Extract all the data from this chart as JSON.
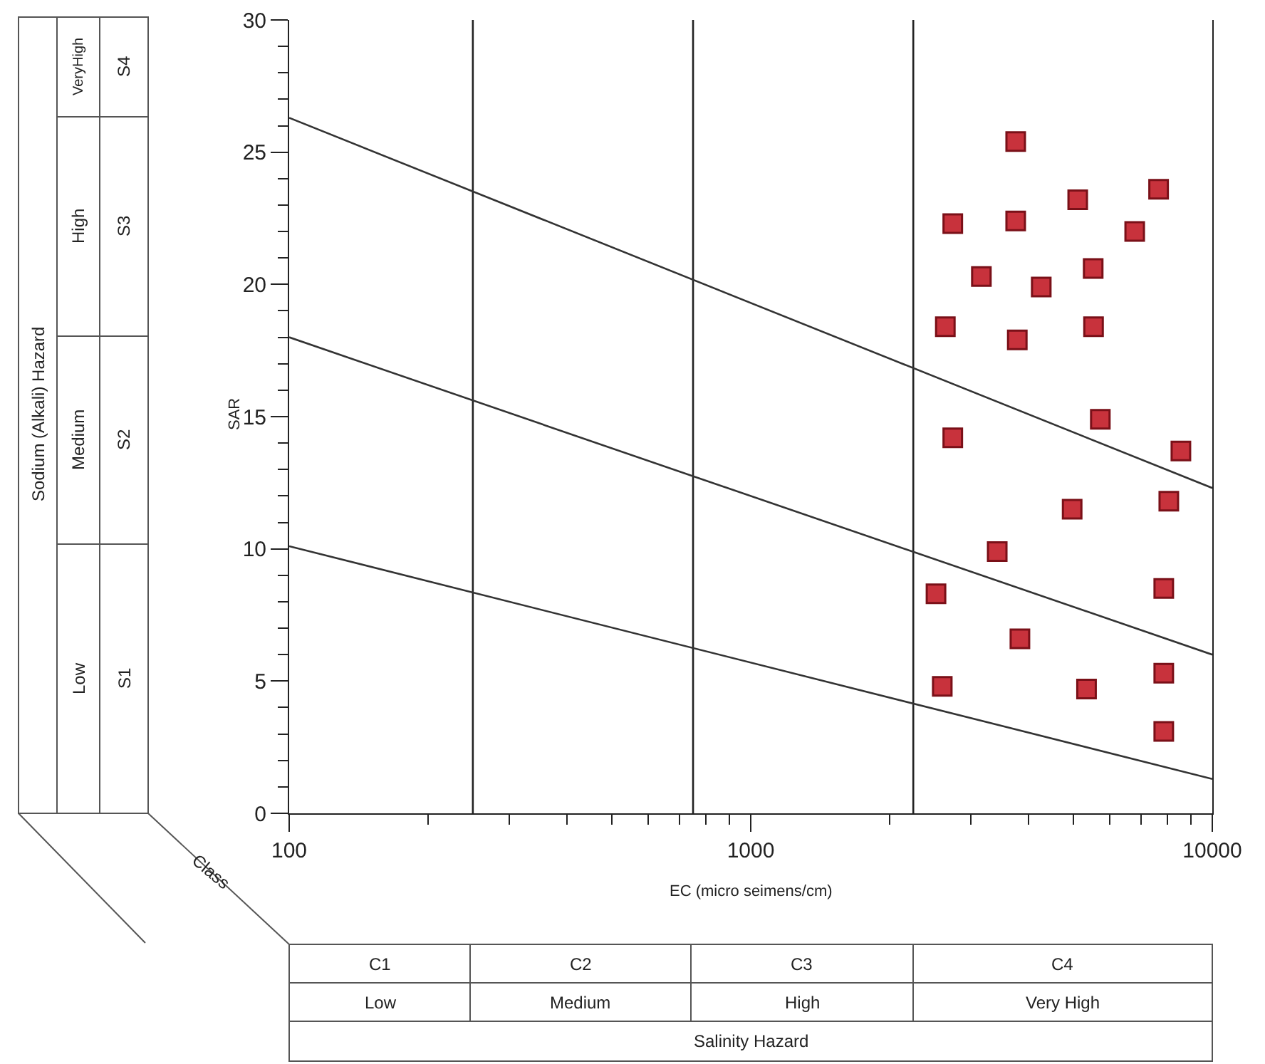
{
  "chart_data": {
    "type": "scatter",
    "xlabel": "EC (micro seimens/cm)",
    "ylabel": "SAR",
    "log": "x",
    "xlim": [
      100,
      10000
    ],
    "xticks": [
      100,
      {
        "value": 200,
        "label": null
      },
      {
        "value": 300,
        "label": null
      },
      {
        "value": 400,
        "label": null
      },
      {
        "value": 500,
        "label": null
      },
      {
        "value": 600,
        "label": null
      },
      {
        "value": 700,
        "label": null
      },
      {
        "value": 800,
        "label": null
      },
      {
        "value": 900,
        "label": null
      },
      1000,
      {
        "value": 2000,
        "label": null
      },
      {
        "value": 3000,
        "label": null
      },
      {
        "value": 4000,
        "label": null
      },
      {
        "value": 5000,
        "label": null
      },
      {
        "value": 6000,
        "label": null
      },
      {
        "value": 7000,
        "label": null
      },
      {
        "value": 8000,
        "label": null
      },
      {
        "value": 9000,
        "label": null
      },
      10000
    ],
    "ylim": [
      0,
      30
    ],
    "yticks": [
      0,
      {
        "value": 1,
        "label": null
      },
      {
        "value": 2,
        "label": null
      },
      {
        "value": 3,
        "label": null
      },
      {
        "value": 4,
        "label": null
      },
      5,
      {
        "value": 6,
        "label": null
      },
      {
        "value": 7,
        "label": null
      },
      {
        "value": 8,
        "label": null
      },
      {
        "value": 9,
        "label": null
      },
      10,
      {
        "value": 11,
        "label": null
      },
      {
        "value": 12,
        "label": null
      },
      {
        "value": 13,
        "label": null
      },
      {
        "value": 14,
        "label": null
      },
      15,
      {
        "value": 16,
        "label": null
      },
      {
        "value": 17,
        "label": null
      },
      {
        "value": 18,
        "label": null
      },
      {
        "value": 19,
        "label": null
      },
      20,
      {
        "value": 21,
        "label": null
      },
      {
        "value": 22,
        "label": null
      },
      {
        "value": 23,
        "label": null
      },
      {
        "value": 24,
        "label": null
      },
      25,
      {
        "value": 26,
        "label": null
      },
      {
        "value": 27,
        "label": null
      },
      {
        "value": 28,
        "label": null
      },
      {
        "value": 29,
        "label": null
      },
      30
    ],
    "grid": false,
    "ref_lines": [
      {
        "axis": "x",
        "value": 250,
        "color": "#222222"
      },
      {
        "axis": "x",
        "value": 750,
        "color": "#222222"
      },
      {
        "axis": "x",
        "value": 2250,
        "color": "#222222"
      }
    ],
    "series": [
      {
        "marker": "square",
        "color": "#c8323c",
        "x": [
          3750,
          5110,
          7650,
          2740,
          3750,
          6790,
          3160,
          5520,
          4260,
          2640,
          3780,
          5530,
          5720,
          8550,
          2740,
          4970,
          8050,
          3420,
          2520,
          7850,
          3830,
          2600,
          5340,
          7850,
          7850
        ],
        "values": [
          25.4,
          23.2,
          23.6,
          22.3,
          22.4,
          22.0,
          20.3,
          20.6,
          19.9,
          18.4,
          17.9,
          18.4,
          14.9,
          13.7,
          14.2,
          11.5,
          11.8,
          9.9,
          8.3,
          8.5,
          6.6,
          4.8,
          4.7,
          5.3,
          3.1
        ]
      },
      {
        "type": "line",
        "color": "#333333",
        "x": [
          100,
          10000
        ],
        "values": [
          26.3,
          12.3
        ]
      },
      {
        "type": "line",
        "color": "#333333",
        "x": [
          100,
          10000
        ],
        "values": [
          18.0,
          6.0
        ]
      },
      {
        "type": "line",
        "color": "#333333",
        "x": [
          100,
          10000
        ],
        "values": [
          10.1,
          1.3
        ]
      }
    ],
    "annotations": [
      "Sodium (Alkali) Hazard",
      "Low",
      "Medium",
      "High",
      "VeryHigh",
      "S1",
      "S2",
      "S3",
      "S4",
      "Class",
      "C1",
      "C2",
      "C3",
      "C4",
      "Low",
      "Medium",
      "High",
      "Very High",
      "Salinity Hazard"
    ]
  }
}
